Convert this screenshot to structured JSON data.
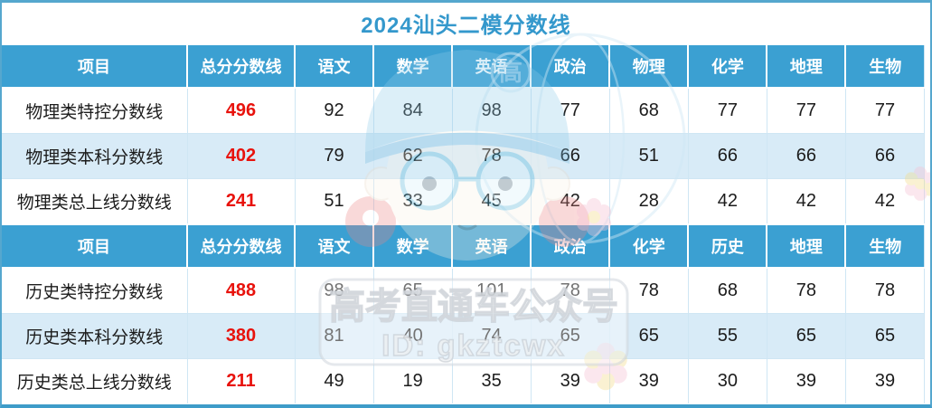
{
  "chart_data": {
    "type": "table",
    "title": "2024汕头二模分数线",
    "sections": [
      {
        "columns": [
          "项目",
          "总分分数线",
          "语文",
          "数学",
          "英语",
          "政治",
          "物理",
          "化学",
          "地理",
          "生物"
        ],
        "rows": [
          {
            "label": "物理类特控分数线",
            "total": "496",
            "scores": [
              "92",
              "84",
              "98",
              "77",
              "68",
              "77",
              "77",
              "77"
            ]
          },
          {
            "label": "物理类本科分数线",
            "total": "402",
            "scores": [
              "79",
              "62",
              "78",
              "66",
              "51",
              "66",
              "66",
              "66"
            ]
          },
          {
            "label": "物理类总上线分数线",
            "total": "241",
            "scores": [
              "51",
              "33",
              "45",
              "42",
              "28",
              "42",
              "42",
              "42"
            ]
          }
        ]
      },
      {
        "columns": [
          "项目",
          "总分分数线",
          "语文",
          "数学",
          "英语",
          "政治",
          "化学",
          "历史",
          "地理",
          "生物"
        ],
        "rows": [
          {
            "label": "历史类特控分数线",
            "total": "488",
            "scores": [
              "98",
              "65",
              "101",
              "78",
              "78",
              "68",
              "78",
              "78"
            ]
          },
          {
            "label": "历史类本科分数线",
            "total": "380",
            "scores": [
              "81",
              "40",
              "74",
              "65",
              "65",
              "55",
              "65",
              "65"
            ]
          },
          {
            "label": "历史类总上线分数线",
            "total": "211",
            "scores": [
              "49",
              "19",
              "35",
              "39",
              "39",
              "30",
              "39",
              "39"
            ]
          }
        ]
      }
    ],
    "layout_hints": {
      "alternating_row_highlight": "second data row of each section",
      "total_column_text_color": "red",
      "header_rows": "blue background, white bold text"
    }
  },
  "watermark": {
    "line1": "高考直通车公众号",
    "line2": "ID: gkztcwx",
    "badge": "高"
  },
  "colors": {
    "header_bg": "#3ba0d2",
    "row_alt_bg": "#d8ebf7",
    "accent_red": "#e8120c",
    "title_blue": "#3498cc",
    "border_blue": "#55a7ce",
    "grid_line": "#cfe6f4"
  }
}
